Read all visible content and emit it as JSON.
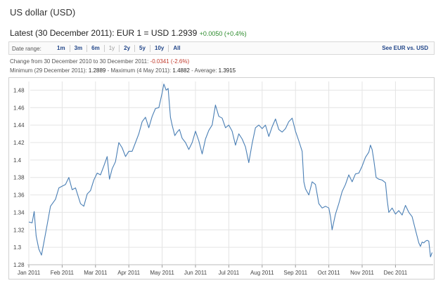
{
  "title": "US dollar (USD)",
  "latest": {
    "label": "Latest (30 December 2011): EUR 1 = USD 1.2939",
    "change": "+0.0050 (+0.4%)"
  },
  "range": {
    "label": "Date range:",
    "options": [
      "1m",
      "3m",
      "6m",
      "1y",
      "2y",
      "5y",
      "10y",
      "All"
    ],
    "see_link": "See EUR vs. USD"
  },
  "stats": {
    "change_prefix": "Change from 30 December 2010 to 30 December 2011:",
    "change_value": "-0.0341 (-2.6%)",
    "min_label": "Minimum (29 December 2011):",
    "min_value": "1.2889",
    "max_label": "- Maximum (4 May 2011):",
    "max_value": "1.4882",
    "avg_label": "- Average:",
    "avg_value": "1.3915"
  },
  "colors": {
    "line": "#4a7fb5",
    "grid": "#e4e4e4",
    "link": "#23478a",
    "positive": "#2a8a2a",
    "negative": "#c0392b"
  },
  "chart_data": {
    "type": "line",
    "title": "",
    "xlabel": "",
    "ylabel": "",
    "ylim": [
      1.28,
      1.49
    ],
    "y_ticks": [
      1.28,
      1.3,
      1.32,
      1.34,
      1.36,
      1.38,
      1.4,
      1.42,
      1.44,
      1.46,
      1.48
    ],
    "x_ticks": [
      "Jan 2011",
      "Feb 2011",
      "Mar 2011",
      "Apr 2011",
      "May 2011",
      "Jun 2011",
      "Jul 2011",
      "Aug 2011",
      "Sep 2011",
      "Oct 2011",
      "Nov 2011",
      "Dec 2011"
    ],
    "grid": true,
    "series": [
      {
        "values": [
          [
            0.0,
            1.329
          ],
          [
            0.1,
            1.328
          ],
          [
            0.16,
            1.341
          ],
          [
            0.22,
            1.313
          ],
          [
            0.3,
            1.298
          ],
          [
            0.38,
            1.291
          ],
          [
            0.45,
            1.305
          ],
          [
            0.55,
            1.326
          ],
          [
            0.65,
            1.347
          ],
          [
            0.8,
            1.355
          ],
          [
            0.9,
            1.368
          ],
          [
            1.0,
            1.37
          ],
          [
            1.1,
            1.372
          ],
          [
            1.2,
            1.38
          ],
          [
            1.3,
            1.366
          ],
          [
            1.4,
            1.368
          ],
          [
            1.5,
            1.356
          ],
          [
            1.55,
            1.35
          ],
          [
            1.65,
            1.347
          ],
          [
            1.75,
            1.361
          ],
          [
            1.85,
            1.365
          ],
          [
            1.95,
            1.377
          ],
          [
            2.05,
            1.385
          ],
          [
            2.15,
            1.383
          ],
          [
            2.25,
            1.393
          ],
          [
            2.35,
            1.404
          ],
          [
            2.42,
            1.378
          ],
          [
            2.5,
            1.39
          ],
          [
            2.6,
            1.398
          ],
          [
            2.7,
            1.42
          ],
          [
            2.8,
            1.414
          ],
          [
            2.9,
            1.404
          ],
          [
            3.0,
            1.41
          ],
          [
            3.1,
            1.41
          ],
          [
            3.2,
            1.42
          ],
          [
            3.3,
            1.43
          ],
          [
            3.4,
            1.444
          ],
          [
            3.5,
            1.449
          ],
          [
            3.6,
            1.437
          ],
          [
            3.7,
            1.45
          ],
          [
            3.8,
            1.459
          ],
          [
            3.9,
            1.46
          ],
          [
            4.0,
            1.477
          ],
          [
            4.05,
            1.487
          ],
          [
            4.12,
            1.48
          ],
          [
            4.18,
            1.482
          ],
          [
            4.25,
            1.449
          ],
          [
            4.3,
            1.44
          ],
          [
            4.38,
            1.428
          ],
          [
            4.45,
            1.432
          ],
          [
            4.52,
            1.435
          ],
          [
            4.6,
            1.425
          ],
          [
            4.7,
            1.42
          ],
          [
            4.8,
            1.412
          ],
          [
            4.9,
            1.42
          ],
          [
            5.0,
            1.433
          ],
          [
            5.1,
            1.422
          ],
          [
            5.2,
            1.407
          ],
          [
            5.3,
            1.424
          ],
          [
            5.4,
            1.434
          ],
          [
            5.5,
            1.44
          ],
          [
            5.6,
            1.463
          ],
          [
            5.7,
            1.45
          ],
          [
            5.8,
            1.448
          ],
          [
            5.9,
            1.437
          ],
          [
            6.0,
            1.44
          ],
          [
            6.1,
            1.433
          ],
          [
            6.2,
            1.417
          ],
          [
            6.3,
            1.43
          ],
          [
            6.4,
            1.424
          ],
          [
            6.5,
            1.415
          ],
          [
            6.6,
            1.397
          ],
          [
            6.7,
            1.419
          ],
          [
            6.8,
            1.437
          ],
          [
            6.9,
            1.44
          ],
          [
            7.0,
            1.436
          ],
          [
            7.1,
            1.44
          ],
          [
            7.2,
            1.427
          ],
          [
            7.3,
            1.438
          ],
          [
            7.4,
            1.447
          ],
          [
            7.5,
            1.435
          ],
          [
            7.6,
            1.432
          ],
          [
            7.7,
            1.436
          ],
          [
            7.8,
            1.444
          ],
          [
            7.9,
            1.448
          ],
          [
            8.0,
            1.433
          ],
          [
            8.1,
            1.422
          ],
          [
            8.2,
            1.41
          ],
          [
            8.25,
            1.375
          ],
          [
            8.3,
            1.367
          ],
          [
            8.4,
            1.36
          ],
          [
            8.5,
            1.375
          ],
          [
            8.6,
            1.372
          ],
          [
            8.7,
            1.35
          ],
          [
            8.8,
            1.345
          ],
          [
            8.9,
            1.347
          ],
          [
            9.0,
            1.345
          ],
          [
            9.05,
            1.335
          ],
          [
            9.1,
            1.32
          ],
          [
            9.2,
            1.338
          ],
          [
            9.3,
            1.35
          ],
          [
            9.4,
            1.364
          ],
          [
            9.5,
            1.372
          ],
          [
            9.6,
            1.383
          ],
          [
            9.7,
            1.375
          ],
          [
            9.8,
            1.384
          ],
          [
            9.9,
            1.385
          ],
          [
            10.0,
            1.393
          ],
          [
            10.1,
            1.403
          ],
          [
            10.2,
            1.409
          ],
          [
            10.25,
            1.417
          ],
          [
            10.3,
            1.412
          ],
          [
            10.35,
            1.4
          ],
          [
            10.42,
            1.38
          ],
          [
            10.5,
            1.378
          ],
          [
            10.6,
            1.377
          ],
          [
            10.7,
            1.374
          ],
          [
            10.75,
            1.355
          ],
          [
            10.8,
            1.34
          ],
          [
            10.9,
            1.345
          ],
          [
            11.0,
            1.338
          ],
          [
            11.1,
            1.342
          ],
          [
            11.2,
            1.337
          ],
          [
            11.3,
            1.348
          ],
          [
            11.4,
            1.34
          ],
          [
            11.5,
            1.335
          ],
          [
            11.6,
            1.32
          ],
          [
            11.7,
            1.305
          ],
          [
            11.75,
            1.301
          ],
          [
            11.8,
            1.306
          ],
          [
            11.85,
            1.305
          ],
          [
            11.9,
            1.307
          ],
          [
            11.95,
            1.308
          ],
          [
            12.0,
            1.307
          ],
          [
            12.05,
            1.289
          ],
          [
            12.1,
            1.294
          ]
        ]
      }
    ]
  }
}
